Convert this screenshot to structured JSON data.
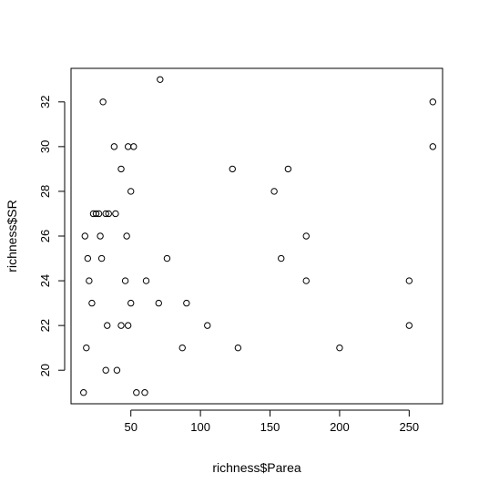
{
  "chart_data": {
    "type": "scatter",
    "xlabel": "richness$Parea",
    "ylabel": "richness$SR",
    "xlim": [
      7,
      274
    ],
    "ylim": [
      18.5,
      33.5
    ],
    "x_ticks": [
      50,
      100,
      150,
      200,
      250
    ],
    "y_ticks": [
      20,
      22,
      24,
      26,
      28,
      30,
      32
    ],
    "grid": false,
    "point_style": "open-circle",
    "points": [
      {
        "x": 16,
        "y": 19
      },
      {
        "x": 17,
        "y": 26
      },
      {
        "x": 18,
        "y": 21
      },
      {
        "x": 19,
        "y": 25
      },
      {
        "x": 20,
        "y": 24
      },
      {
        "x": 22,
        "y": 23
      },
      {
        "x": 23,
        "y": 27
      },
      {
        "x": 25,
        "y": 27
      },
      {
        "x": 27,
        "y": 27
      },
      {
        "x": 28,
        "y": 26
      },
      {
        "x": 29,
        "y": 25
      },
      {
        "x": 30,
        "y": 32
      },
      {
        "x": 32,
        "y": 20
      },
      {
        "x": 32,
        "y": 27
      },
      {
        "x": 33,
        "y": 22
      },
      {
        "x": 34,
        "y": 27
      },
      {
        "x": 38,
        "y": 30
      },
      {
        "x": 39,
        "y": 27
      },
      {
        "x": 40,
        "y": 20
      },
      {
        "x": 43,
        "y": 29
      },
      {
        "x": 43,
        "y": 22
      },
      {
        "x": 46,
        "y": 24
      },
      {
        "x": 47,
        "y": 26
      },
      {
        "x": 48,
        "y": 22
      },
      {
        "x": 48,
        "y": 30
      },
      {
        "x": 50,
        "y": 28
      },
      {
        "x": 50,
        "y": 23
      },
      {
        "x": 52,
        "y": 30
      },
      {
        "x": 54,
        "y": 19
      },
      {
        "x": 60,
        "y": 19
      },
      {
        "x": 61,
        "y": 24
      },
      {
        "x": 70,
        "y": 23
      },
      {
        "x": 71,
        "y": 33
      },
      {
        "x": 76,
        "y": 25
      },
      {
        "x": 87,
        "y": 21
      },
      {
        "x": 90,
        "y": 23
      },
      {
        "x": 105,
        "y": 22
      },
      {
        "x": 123,
        "y": 29
      },
      {
        "x": 127,
        "y": 21
      },
      {
        "x": 153,
        "y": 28
      },
      {
        "x": 158,
        "y": 25
      },
      {
        "x": 163,
        "y": 29
      },
      {
        "x": 176,
        "y": 26
      },
      {
        "x": 176,
        "y": 24
      },
      {
        "x": 200,
        "y": 21
      },
      {
        "x": 250,
        "y": 24
      },
      {
        "x": 250,
        "y": 22
      },
      {
        "x": 267,
        "y": 32
      },
      {
        "x": 267,
        "y": 30
      }
    ]
  }
}
